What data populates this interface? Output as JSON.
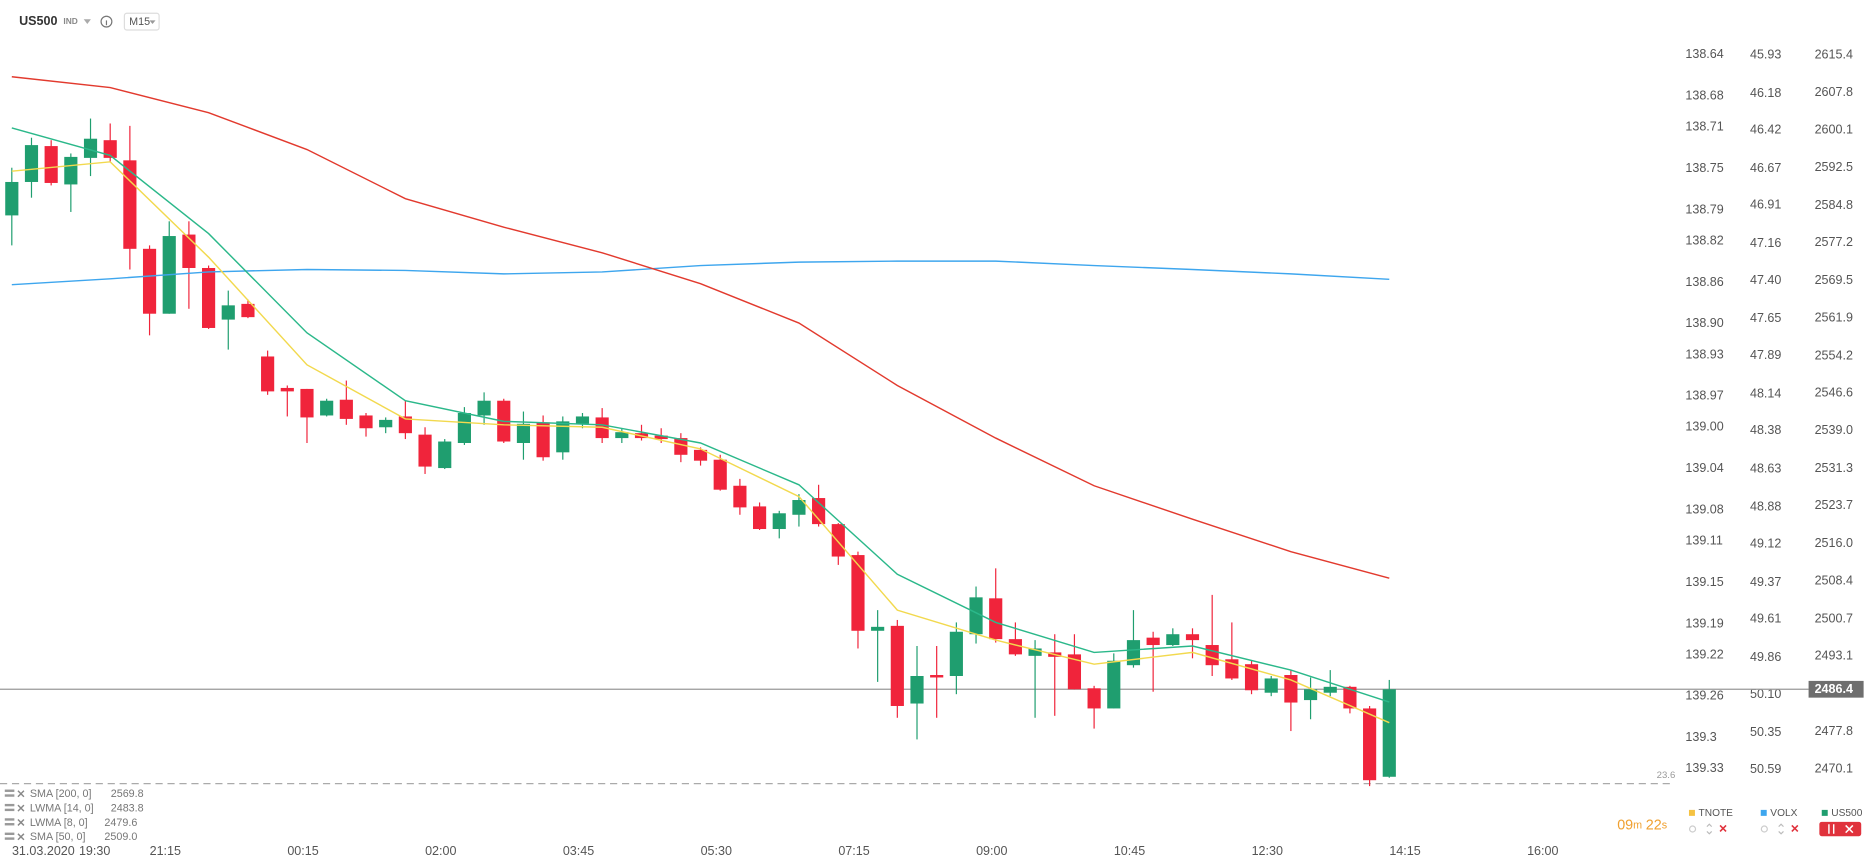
{
  "header": {
    "symbol": "US500",
    "type": "IND",
    "timeframe": "M15"
  },
  "chart_data": {
    "type": "candlestick",
    "date": "31.03.2020",
    "xlim": [
      -0.6,
      84.5
    ],
    "xticks": [
      {
        "value": 0.8,
        "label": "19:30"
      },
      {
        "value": 7.8,
        "label": "21:15"
      },
      {
        "value": 14.8,
        "label": "00:15"
      },
      {
        "value": 21.8,
        "label": "02:00"
      },
      {
        "value": 28.8,
        "label": "03:45"
      },
      {
        "value": 35.8,
        "label": "05:30"
      },
      {
        "value": 42.8,
        "label": "07:15"
      },
      {
        "value": 49.8,
        "label": "09:00"
      },
      {
        "value": 56.8,
        "label": "10:45"
      },
      {
        "value": 63.8,
        "label": "12:30"
      },
      {
        "value": 70.8,
        "label": "14:15"
      },
      {
        "value": 77.8,
        "label": "16:00"
      }
    ],
    "axis_name": "US500",
    "axis_color": "#1f9e6f",
    "ylim": [
      2466.0,
      2626.6
    ],
    "yticks": [
      2615.4,
      2607.8,
      2600.1,
      2592.5,
      2584.8,
      2577.2,
      2569.5,
      2561.9,
      2554.2,
      2546.6,
      {
        "value": 2539,
        "label": "2539.0"
      },
      2531.3,
      2523.7,
      {
        "value": 2516,
        "label": "2516.0"
      },
      2508.4,
      2500.7,
      2493.1,
      2477.8,
      2470.1
    ],
    "up_color": "#1f9e6f",
    "down_color": "#f0243b",
    "open": [
      2582.8,
      2589.6,
      2596.9,
      2589.1,
      2594.5,
      2598.1,
      2594.0,
      2576.0,
      2562.8,
      2578.9,
      2572.1,
      2561.6,
      2564.8,
      2554.1,
      2547.7,
      2547.5,
      2542.1,
      2545.3,
      2542.1,
      2539.7,
      2541.9,
      2538.2,
      2531.4,
      2536.5,
      2542.1,
      2545.1,
      2536.5,
      2540.7,
      2534.6,
      2540.4,
      2541.7,
      2537.5,
      2538.5,
      2538.0,
      2537.5,
      2535.1,
      2533.1,
      2527.8,
      2523.6,
      2519.0,
      2521.9,
      2525.3,
      2520.0,
      2513.7,
      2498.3,
      2499.3,
      2483.5,
      2489.3,
      2489.1,
      2497.6,
      2504.9,
      2496.6,
      2493.2,
      2493.9,
      2493.5,
      2486.6,
      2482.5,
      2491.3,
      2496.9,
      2495.4,
      2497.6,
      2495.4,
      2492.5,
      2491.5,
      2485.7,
      2489.3,
      2484.2,
      2485.7,
      2486.9,
      2482.5,
      2468.6
    ],
    "high": [
      2592.5,
      2598.6,
      2598.1,
      2595.4,
      2602.5,
      2601.5,
      2601.0,
      2576.7,
      2581.6,
      2581.6,
      2572.6,
      2567.5,
      2565.7,
      2555.3,
      2548.2,
      2547.5,
      2545.5,
      2549.2,
      2542.6,
      2541.7,
      2545.1,
      2539.7,
      2537.3,
      2543.8,
      2546.8,
      2545.5,
      2542.9,
      2542.1,
      2541.9,
      2542.6,
      2543.6,
      2539.5,
      2540.2,
      2539.5,
      2538.5,
      2535.6,
      2534.1,
      2529.2,
      2524.4,
      2522.7,
      2526.1,
      2528.0,
      2520.2,
      2514.4,
      2502.5,
      2500.5,
      2495.2,
      2495.2,
      2500.0,
      2507.3,
      2511.0,
      2500.0,
      2496.4,
      2497.6,
      2497.6,
      2487.1,
      2493.7,
      2502.5,
      2498.1,
      2498.8,
      2498.8,
      2505.6,
      2500.0,
      2492.2,
      2489.1,
      2490.3,
      2488.8,
      2490.3,
      2487.1,
      2483.0,
      2488.3
    ],
    "low": [
      2576.7,
      2586.4,
      2588.9,
      2583.5,
      2590.8,
      2593.7,
      2571.8,
      2558.4,
      2562.8,
      2563.8,
      2559.7,
      2555.5,
      2561.9,
      2546.3,
      2541.9,
      2536.5,
      2541.9,
      2540.2,
      2537.8,
      2538.5,
      2537.3,
      2530.2,
      2531.2,
      2536.1,
      2540.2,
      2536.5,
      2533.1,
      2532.9,
      2533.1,
      2539.5,
      2536.5,
      2536.5,
      2537.0,
      2536.5,
      2532.6,
      2531.9,
      2526.8,
      2521.9,
      2518.8,
      2517.1,
      2519.5,
      2519.5,
      2511.7,
      2494.7,
      2487.9,
      2480.6,
      2476.2,
      2480.6,
      2485.4,
      2495.7,
      2495.9,
      2493.2,
      2480.6,
      2481.0,
      2486.4,
      2478.4,
      2482.5,
      2490.8,
      2485.9,
      2495.2,
      2492.7,
      2489.1,
      2488.3,
      2485.4,
      2485.0,
      2477.9,
      2480.3,
      2485.0,
      2481.5,
      2466.7,
      2468.4
    ],
    "close": [
      2589.6,
      2597.1,
      2589.4,
      2594.7,
      2598.4,
      2594.5,
      2576.0,
      2562.8,
      2578.6,
      2572.1,
      2559.9,
      2564.5,
      2562.1,
      2547.0,
      2547.0,
      2541.7,
      2545.1,
      2541.4,
      2539.5,
      2541.2,
      2538.5,
      2531.7,
      2536.8,
      2542.6,
      2545.1,
      2536.8,
      2540.4,
      2533.6,
      2540.9,
      2541.9,
      2537.5,
      2538.7,
      2537.5,
      2537.3,
      2534.1,
      2532.9,
      2527.0,
      2523.4,
      2519.0,
      2522.2,
      2524.9,
      2520.0,
      2513.4,
      2498.3,
      2499.1,
      2483.0,
      2489.1,
      2488.8,
      2498.1,
      2505.1,
      2496.6,
      2493.5,
      2494.7,
      2493.0,
      2486.4,
      2482.5,
      2492.2,
      2496.4,
      2495.4,
      2497.6,
      2496.4,
      2491.3,
      2488.6,
      2486.2,
      2488.6,
      2483.7,
      2486.4,
      2486.9,
      2482.5,
      2467.9,
      2486.4
    ],
    "ma_x": [
      0,
      5,
      10,
      15,
      20,
      25,
      30,
      35,
      40,
      45,
      50,
      55,
      60,
      65,
      70
    ],
    "series": [
      {
        "name": "SMA [200, 0]",
        "color": "#3ea6ee",
        "values": [
          2568.7,
          2569.9,
          2571.3,
          2571.8,
          2571.6,
          2570.9,
          2571.3,
          2572.6,
          2573.3,
          2573.5,
          2573.5,
          2572.6,
          2571.8,
          2570.9,
          2569.8
        ]
      },
      {
        "name": "LWMA [14, 0]",
        "color": "#2bb88a",
        "values": [
          2600.6,
          2595.0,
          2579.1,
          2558.9,
          2545.1,
          2540.9,
          2540.2,
          2536.5,
          2528.0,
          2509.8,
          2500.0,
          2493.9,
          2495.2,
          2490.3,
          2483.8
        ]
      },
      {
        "name": "LWMA [8, 0]",
        "color": "#f2d94e",
        "values": [
          2591.8,
          2593.7,
          2574.3,
          2552.4,
          2541.4,
          2540.2,
          2539.7,
          2535.3,
          2525.6,
          2502.5,
          2496.4,
          2491.5,
          2493.9,
          2488.3,
          2479.6
        ]
      },
      {
        "name": "SMA [50, 0]",
        "color": "#e23a2e",
        "values": [
          2611.0,
          2608.8,
          2603.7,
          2596.2,
          2586.2,
          2580.4,
          2575.2,
          2568.9,
          2560.9,
          2548.2,
          2537.5,
          2527.8,
          2521.0,
          2514.4,
          2509.0
        ],
        "value_label": "2509.0"
      }
    ],
    "last_price": 2486.4,
    "level": {
      "label": "23.6",
      "value": 2467.2
    },
    "other_axes": [
      {
        "name": "TNOTE",
        "color": "#f5c242",
        "lim": [
          139.35,
          138.587
        ],
        "ticks": [
          138.64,
          138.68,
          138.71,
          138.75,
          138.79,
          138.82,
          138.86,
          {
            "value": 138.9,
            "label": "138.90"
          },
          138.93,
          138.97,
          {
            "value": 139,
            "label": "139.00"
          },
          139.04,
          139.08,
          139.11,
          139.15,
          139.19,
          139.22,
          139.26,
          139.3,
          139.33
        ]
      },
      {
        "name": "VOLX",
        "color": "#3ea6ee",
        "lim": [
          50.72,
          45.571
        ],
        "ticks": [
          45.93,
          46.18,
          46.42,
          46.67,
          46.91,
          47.16,
          {
            "value": 47.4,
            "label": "47.40"
          },
          47.65,
          47.89,
          48.14,
          48.38,
          48.63,
          48.88,
          49.12,
          49.37,
          49.61,
          49.86,
          {
            "value": 50.1,
            "label": "50.10"
          },
          50.35,
          50.59
        ]
      }
    ]
  },
  "countdown": {
    "minutes": "09",
    "m": "m",
    "seconds": "22",
    "s": "s"
  }
}
